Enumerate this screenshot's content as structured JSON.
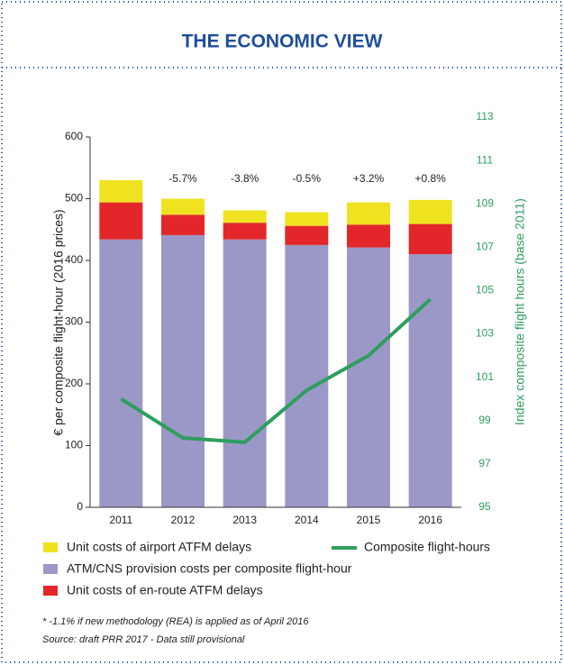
{
  "chart_data": {
    "type": "stacked-bar-line",
    "title": "THE ECONOMIC VIEW",
    "ylabel": "€ per composite flight-hour (2016 prices)",
    "y2label": "Index composite flight hours (base 2011)",
    "categories": [
      "2011",
      "2012",
      "2013",
      "2014",
      "2015",
      "2016"
    ],
    "series": [
      {
        "name": "ATM/CNS provision costs per composite flight-hour",
        "color": "#9b98c8",
        "values": [
          434,
          441,
          434,
          425,
          421,
          410
        ]
      },
      {
        "name": "Unit costs of en-route ATFM delays",
        "color": "#e3262a",
        "values": [
          60,
          33,
          27,
          31,
          37,
          49
        ]
      },
      {
        "name": "Unit costs of airport ATFM delays",
        "color": "#efe320",
        "values": [
          36,
          26,
          20,
          22,
          36,
          39
        ]
      },
      {
        "name": "Composite flight-hours",
        "color": "#2e9e5e",
        "axis": "y2",
        "values": [
          100.0,
          98.2,
          98.0,
          100.4,
          102.0,
          104.6
        ]
      }
    ],
    "annotations": [
      {
        "category": "2012",
        "text": "-5.7%"
      },
      {
        "category": "2013",
        "text": "-3.8%"
      },
      {
        "category": "2014",
        "text": "-0.5%"
      },
      {
        "category": "2015",
        "text": "+3.2%"
      },
      {
        "category": "2016",
        "text": "+0.8%"
      }
    ],
    "ylim": [
      0,
      600
    ],
    "yticks": [
      0,
      100,
      200,
      300,
      400,
      500,
      600
    ],
    "y2lim": [
      95,
      113
    ],
    "y2ticks": [
      95,
      97,
      99,
      101,
      103,
      105,
      107,
      109,
      111,
      113
    ],
    "footnotes": [
      "* -1.1% if new methodology (REA) is applied as of April 2016",
      "Source: draft PRR 2017 - Data still provisional"
    ]
  }
}
